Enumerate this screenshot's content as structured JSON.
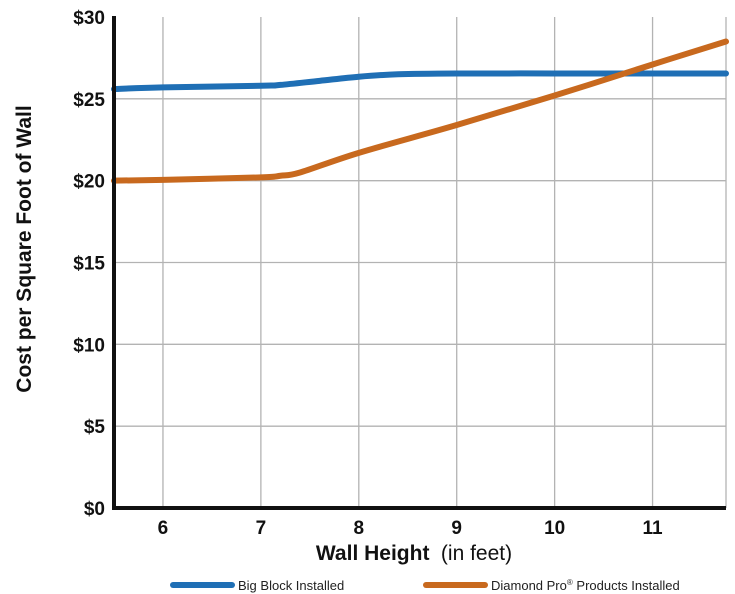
{
  "chart_data": {
    "type": "line",
    "xlabel": "Wall Height",
    "xlabel_suffix": "(in feet)",
    "ylabel": "Cost per Square Foot of Wall",
    "x_ticks": [
      "6",
      "7",
      "8",
      "9",
      "10",
      "11"
    ],
    "y_ticks": [
      "$0",
      "$5",
      "$10",
      "$15",
      "$20",
      "$25",
      "$30"
    ],
    "xlim": [
      5.5,
      11.75
    ],
    "ylim": [
      0,
      30
    ],
    "grid": true,
    "legend_position": "bottom",
    "series": [
      {
        "name": "Big Block Installed",
        "color": "#1f6fb5",
        "x": [
          5.5,
          6.0,
          7.0,
          7.2,
          7.6,
          8.0,
          8.4,
          9.0,
          10.0,
          11.0,
          11.75
        ],
        "y": [
          25.6,
          25.7,
          25.8,
          25.85,
          26.1,
          26.35,
          26.5,
          26.55,
          26.55,
          26.55,
          26.55
        ]
      },
      {
        "name": "Diamond Pro",
        "name_mark": "®",
        "name_rest": " Products Installed",
        "color": "#c8691e",
        "x": [
          5.5,
          6.0,
          7.0,
          7.2,
          7.4,
          8.0,
          9.0,
          10.0,
          11.0,
          11.75
        ],
        "y": [
          20.0,
          20.05,
          20.2,
          20.3,
          20.5,
          21.7,
          23.4,
          25.2,
          27.1,
          28.5
        ]
      }
    ]
  }
}
